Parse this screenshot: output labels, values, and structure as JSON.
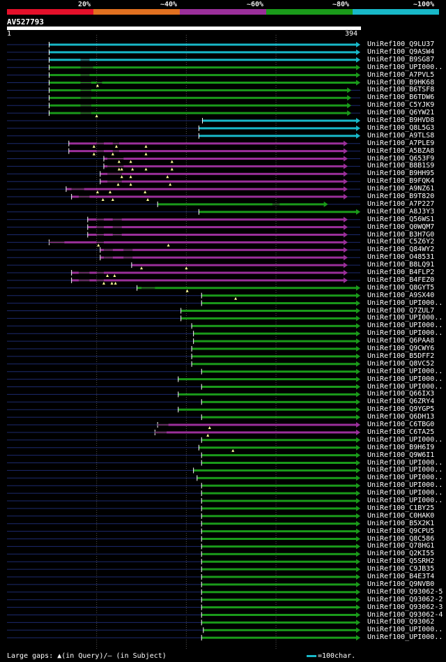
{
  "chart_data": {
    "type": "alignment-overview",
    "query": "AV527793",
    "query_length": 394,
    "axis_start_label": "1",
    "axis_end_label": "394",
    "identity_legend": [
      {
        "label": "20%",
        "color": "#e4102a"
      },
      {
        "label": "~40%",
        "color": "#e07020"
      },
      {
        "label": "~60%",
        "color": "#9a2f9a"
      },
      {
        "label": "~80%",
        "color": "#1a9a1a"
      },
      {
        "label": "~100%",
        "color": "#18b8c8"
      }
    ],
    "footer": {
      "gaps_text": "Large gaps: ▲(in Query)/– (in Subject)",
      "scale_text": "=100char."
    },
    "hits": [
      {
        "id": "UniRef100_Q9LU37",
        "start": 47,
        "end": 394,
        "identity": "~100%",
        "q_gaps": [],
        "s_gaps": []
      },
      {
        "id": "UniRef100_Q9ASW4",
        "start": 47,
        "end": 394,
        "identity": "~100%",
        "q_gaps": [],
        "s_gaps": []
      },
      {
        "id": "UniRef100_B9SG87",
        "start": 47,
        "end": 394,
        "identity": "~100%",
        "q_gaps": [],
        "s_gaps": [
          [
            82,
            92
          ]
        ]
      },
      {
        "id": "UniRef100_UPI000..",
        "start": 47,
        "end": 394,
        "identity": "~80%",
        "q_gaps": [],
        "s_gaps": [
          [
            82,
            96
          ]
        ]
      },
      {
        "id": "UniRef100_A7PVL5",
        "start": 47,
        "end": 394,
        "identity": "~80%",
        "q_gaps": [],
        "s_gaps": [
          [
            82,
            92
          ]
        ]
      },
      {
        "id": "UniRef100_B9HK68",
        "start": 47,
        "end": 394,
        "identity": "~80%",
        "q_gaps": [
          101
        ],
        "s_gaps": [
          [
            82,
            94
          ],
          [
            100,
            106
          ]
        ]
      },
      {
        "id": "UniRef100_B6TSF8",
        "start": 47,
        "end": 384,
        "identity": "~80%",
        "q_gaps": [],
        "s_gaps": [
          [
            82,
            94
          ]
        ]
      },
      {
        "id": "UniRef100_B6TDW6",
        "start": 47,
        "end": 384,
        "identity": "~80%",
        "q_gaps": [],
        "s_gaps": [
          [
            82,
            94
          ]
        ]
      },
      {
        "id": "UniRef100_C5YJK9",
        "start": 47,
        "end": 384,
        "identity": "~80%",
        "q_gaps": [],
        "s_gaps": [
          [
            82,
            94
          ]
        ]
      },
      {
        "id": "UniRef100_Q6YW21",
        "start": 47,
        "end": 384,
        "identity": "~80%",
        "q_gaps": [
          100
        ],
        "s_gaps": [
          [
            82,
            94
          ]
        ]
      },
      {
        "id": "UniRef100_B9HVD8",
        "start": 218,
        "end": 394,
        "identity": "~100%",
        "q_gaps": [],
        "s_gaps": []
      },
      {
        "id": "UniRef100_Q8L5G3",
        "start": 214,
        "end": 394,
        "identity": "~100%",
        "q_gaps": [],
        "s_gaps": []
      },
      {
        "id": "UniRef100_A9TLS8",
        "start": 214,
        "end": 394,
        "identity": "~100%",
        "q_gaps": [],
        "s_gaps": []
      },
      {
        "id": "UniRef100_A7PLE9",
        "start": 69,
        "end": 380,
        "identity": "~60%",
        "q_gaps": [
          97,
          122,
          155
        ],
        "s_gaps": [
          [
            100,
            108
          ],
          [
            118,
            125
          ]
        ]
      },
      {
        "id": "UniRef100_A5BZA8",
        "start": 69,
        "end": 380,
        "identity": "~60%",
        "q_gaps": [
          97,
          118,
          155
        ],
        "s_gaps": [
          [
            100,
            108
          ],
          [
            118,
            125
          ]
        ]
      },
      {
        "id": "UniRef100_Q653F9",
        "start": 108,
        "end": 380,
        "identity": "~60%",
        "q_gaps": [
          125,
          138,
          184
        ],
        "s_gaps": [
          [
            112,
            130
          ]
        ]
      },
      {
        "id": "UniRef100_B8B1S9",
        "start": 108,
        "end": 380,
        "identity": "~60%",
        "q_gaps": [
          125,
          128,
          140,
          155,
          184
        ],
        "s_gaps": [
          [
            112,
            130
          ]
        ]
      },
      {
        "id": "UniRef100_B9HH95",
        "start": 104,
        "end": 380,
        "identity": "~60%",
        "q_gaps": [
          128,
          138,
          179
        ],
        "s_gaps": [
          [
            112,
            128
          ]
        ]
      },
      {
        "id": "UniRef100_B9FQK4",
        "start": 104,
        "end": 380,
        "identity": "~60%",
        "q_gaps": [
          124,
          138,
          182
        ],
        "s_gaps": [
          [
            112,
            128
          ]
        ]
      },
      {
        "id": "UniRef100_A9NZ61",
        "start": 66,
        "end": 380,
        "identity": "~60%",
        "q_gaps": [
          101,
          115,
          154
        ],
        "s_gaps": [
          [
            72,
            86
          ]
        ]
      },
      {
        "id": "UniRef100_B9T820",
        "start": 72,
        "end": 380,
        "identity": "~60%",
        "q_gaps": [
          107,
          118,
          157
        ],
        "s_gaps": [
          [
            80,
            92
          ]
        ]
      },
      {
        "id": "UniRef100_A7P227",
        "start": 168,
        "end": 358,
        "identity": "~80%",
        "q_gaps": [],
        "s_gaps": [
          [
            296,
            304
          ]
        ]
      },
      {
        "id": "UniRef100_A8J3Y3",
        "start": 214,
        "end": 394,
        "identity": "~80%",
        "q_gaps": [],
        "s_gaps": []
      },
      {
        "id": "UniRef100_Q56WS1",
        "start": 90,
        "end": 380,
        "identity": "~60%",
        "q_gaps": [],
        "s_gaps": [
          [
            100,
            108
          ],
          [
            118,
            128
          ]
        ]
      },
      {
        "id": "UniRef100_Q0WQM7",
        "start": 90,
        "end": 380,
        "identity": "~60%",
        "q_gaps": [],
        "s_gaps": [
          [
            100,
            108
          ],
          [
            118,
            128
          ]
        ]
      },
      {
        "id": "UniRef100_B3H7G0",
        "start": 90,
        "end": 380,
        "identity": "~60%",
        "q_gaps": [],
        "s_gaps": [
          [
            100,
            108
          ],
          [
            118,
            128
          ]
        ]
      },
      {
        "id": "UniRef100_C5Z6Y2",
        "start": 47,
        "end": 380,
        "identity": "~60%",
        "q_gaps": [
          102,
          180
        ],
        "s_gaps": [
          [
            47,
            64
          ],
          [
            100,
            108
          ]
        ]
      },
      {
        "id": "UniRef100_Q84WY2",
        "start": 104,
        "end": 380,
        "identity": "~60%",
        "q_gaps": [],
        "s_gaps": [
          [
            108,
            118
          ],
          [
            130,
            140
          ]
        ]
      },
      {
        "id": "UniRef100_O48531",
        "start": 104,
        "end": 380,
        "identity": "~60%",
        "q_gaps": [],
        "s_gaps": [
          [
            108,
            118
          ],
          [
            130,
            140
          ]
        ]
      },
      {
        "id": "UniRef100_B8LQ91",
        "start": 139,
        "end": 380,
        "identity": "~60%",
        "q_gaps": [
          150,
          200
        ],
        "s_gaps": []
      },
      {
        "id": "UniRef100_B4FLP2",
        "start": 72,
        "end": 380,
        "identity": "~60%",
        "q_gaps": [
          112,
          120
        ],
        "s_gaps": [
          [
            80,
            92
          ],
          [
            100,
            108
          ]
        ]
      },
      {
        "id": "UniRef100_B4FEZ0",
        "start": 72,
        "end": 380,
        "identity": "~60%",
        "q_gaps": [
          108,
          117,
          121
        ],
        "s_gaps": [
          [
            80,
            92
          ],
          [
            100,
            108
          ]
        ]
      },
      {
        "id": "UniRef100_Q8GYT5",
        "start": 145,
        "end": 394,
        "identity": "~80%",
        "q_gaps": [
          201
        ],
        "s_gaps": [
          [
            150,
            165
          ]
        ]
      },
      {
        "id": "UniRef100_A9SX40",
        "start": 217,
        "end": 394,
        "identity": "~80%",
        "q_gaps": [
          255
        ],
        "s_gaps": []
      },
      {
        "id": "UniRef100_UPI000..",
        "start": 217,
        "end": 394,
        "identity": "~80%",
        "q_gaps": [],
        "s_gaps": []
      },
      {
        "id": "UniRef100_Q7ZUL7",
        "start": 194,
        "end": 394,
        "identity": "~80%",
        "q_gaps": [],
        "s_gaps": []
      },
      {
        "id": "UniRef100_UPI000..",
        "start": 194,
        "end": 394,
        "identity": "~80%",
        "q_gaps": [],
        "s_gaps": []
      },
      {
        "id": "UniRef100_UPI000..",
        "start": 206,
        "end": 394,
        "identity": "~80%",
        "q_gaps": [],
        "s_gaps": []
      },
      {
        "id": "UniRef100_UPI000..",
        "start": 208,
        "end": 394,
        "identity": "~80%",
        "q_gaps": [],
        "s_gaps": []
      },
      {
        "id": "UniRef100_Q6PAA8",
        "start": 208,
        "end": 394,
        "identity": "~80%",
        "q_gaps": [],
        "s_gaps": []
      },
      {
        "id": "UniRef100_Q9CWY6",
        "start": 206,
        "end": 394,
        "identity": "~80%",
        "q_gaps": [],
        "s_gaps": []
      },
      {
        "id": "UniRef100_B5DFF2",
        "start": 206,
        "end": 394,
        "identity": "~80%",
        "q_gaps": [],
        "s_gaps": []
      },
      {
        "id": "UniRef100_Q8VC52",
        "start": 206,
        "end": 394,
        "identity": "~80%",
        "q_gaps": [],
        "s_gaps": []
      },
      {
        "id": "UniRef100_UPI000..",
        "start": 217,
        "end": 394,
        "identity": "~80%",
        "q_gaps": [],
        "s_gaps": []
      },
      {
        "id": "UniRef100_UPI000..",
        "start": 191,
        "end": 394,
        "identity": "~80%",
        "q_gaps": [],
        "s_gaps": []
      },
      {
        "id": "UniRef100_UPI000..",
        "start": 217,
        "end": 394,
        "identity": "~80%",
        "q_gaps": [],
        "s_gaps": []
      },
      {
        "id": "UniRef100_Q66IX3",
        "start": 191,
        "end": 394,
        "identity": "~80%",
        "q_gaps": [],
        "s_gaps": []
      },
      {
        "id": "UniRef100_Q6ZRY4",
        "start": 217,
        "end": 394,
        "identity": "~80%",
        "q_gaps": [],
        "s_gaps": []
      },
      {
        "id": "UniRef100_Q9YGP5",
        "start": 191,
        "end": 394,
        "identity": "~80%",
        "q_gaps": [],
        "s_gaps": []
      },
      {
        "id": "UniRef100_Q6DH13",
        "start": 217,
        "end": 394,
        "identity": "~80%",
        "q_gaps": [],
        "s_gaps": []
      },
      {
        "id": "UniRef100_C6TBG0",
        "start": 168,
        "end": 394,
        "identity": "~60%",
        "q_gaps": [
          226
        ],
        "s_gaps": [
          [
            168,
            180
          ]
        ]
      },
      {
        "id": "UniRef100_C6TA25",
        "start": 165,
        "end": 394,
        "identity": "~60%",
        "q_gaps": [
          224
        ],
        "s_gaps": [
          [
            165,
            178
          ]
        ]
      },
      {
        "id": "UniRef100_UPI000..",
        "start": 217,
        "end": 394,
        "identity": "~80%",
        "q_gaps": [],
        "s_gaps": []
      },
      {
        "id": "UniRef100_B9H6I9",
        "start": 214,
        "end": 394,
        "identity": "~80%",
        "q_gaps": [
          252
        ],
        "s_gaps": []
      },
      {
        "id": "UniRef100_Q9W6I1",
        "start": 217,
        "end": 394,
        "identity": "~80%",
        "q_gaps": [],
        "s_gaps": []
      },
      {
        "id": "UniRef100_UPI000..",
        "start": 217,
        "end": 394,
        "identity": "~80%",
        "q_gaps": [],
        "s_gaps": []
      },
      {
        "id": "UniRef100_UPI000..",
        "start": 208,
        "end": 394,
        "identity": "~80%",
        "q_gaps": [],
        "s_gaps": []
      },
      {
        "id": "UniRef100_UPI000..",
        "start": 212,
        "end": 394,
        "identity": "~80%",
        "q_gaps": [],
        "s_gaps": []
      },
      {
        "id": "UniRef100_UPI000..",
        "start": 217,
        "end": 394,
        "identity": "~80%",
        "q_gaps": [],
        "s_gaps": []
      },
      {
        "id": "UniRef100_UPI000..",
        "start": 217,
        "end": 394,
        "identity": "~80%",
        "q_gaps": [],
        "s_gaps": []
      },
      {
        "id": "UniRef100_UPI000..",
        "start": 217,
        "end": 394,
        "identity": "~80%",
        "q_gaps": [],
        "s_gaps": []
      },
      {
        "id": "UniRef100_C1BY25",
        "start": 217,
        "end": 394,
        "identity": "~80%",
        "q_gaps": [],
        "s_gaps": []
      },
      {
        "id": "UniRef100_C0HAK0",
        "start": 217,
        "end": 394,
        "identity": "~80%",
        "q_gaps": [],
        "s_gaps": []
      },
      {
        "id": "UniRef100_B5X2K1",
        "start": 217,
        "end": 394,
        "identity": "~80%",
        "q_gaps": [],
        "s_gaps": []
      },
      {
        "id": "UniRef100_Q9CPU5",
        "start": 217,
        "end": 394,
        "identity": "~80%",
        "q_gaps": [],
        "s_gaps": []
      },
      {
        "id": "UniRef100_Q8C586",
        "start": 217,
        "end": 394,
        "identity": "~80%",
        "q_gaps": [],
        "s_gaps": []
      },
      {
        "id": "UniRef100_Q78HG1",
        "start": 217,
        "end": 394,
        "identity": "~80%",
        "q_gaps": [],
        "s_gaps": []
      },
      {
        "id": "UniRef100_Q2KI55",
        "start": 217,
        "end": 394,
        "identity": "~80%",
        "q_gaps": [],
        "s_gaps": []
      },
      {
        "id": "UniRef100_Q5SRH2",
        "start": 217,
        "end": 394,
        "identity": "~80%",
        "q_gaps": [],
        "s_gaps": []
      },
      {
        "id": "UniRef100_C9JB35",
        "start": 217,
        "end": 394,
        "identity": "~80%",
        "q_gaps": [],
        "s_gaps": []
      },
      {
        "id": "UniRef100_B4E3T4",
        "start": 217,
        "end": 394,
        "identity": "~80%",
        "q_gaps": [],
        "s_gaps": []
      },
      {
        "id": "UniRef100_Q9NVB0",
        "start": 217,
        "end": 394,
        "identity": "~80%",
        "q_gaps": [],
        "s_gaps": []
      },
      {
        "id": "UniRef100_Q93062-5",
        "start": 217,
        "end": 394,
        "identity": "~80%",
        "q_gaps": [],
        "s_gaps": []
      },
      {
        "id": "UniRef100_Q93062-2",
        "start": 217,
        "end": 394,
        "identity": "~80%",
        "q_gaps": [],
        "s_gaps": []
      },
      {
        "id": "UniRef100_Q93062-3",
        "start": 217,
        "end": 394,
        "identity": "~80%",
        "q_gaps": [],
        "s_gaps": []
      },
      {
        "id": "UniRef100_Q93062-4",
        "start": 217,
        "end": 394,
        "identity": "~80%",
        "q_gaps": [],
        "s_gaps": []
      },
      {
        "id": "UniRef100_Q93062",
        "start": 217,
        "end": 394,
        "identity": "~80%",
        "q_gaps": [],
        "s_gaps": []
      },
      {
        "id": "UniRef100_UPI000..",
        "start": 219,
        "end": 394,
        "identity": "~80%",
        "q_gaps": [],
        "s_gaps": []
      },
      {
        "id": "UniRef100_UPI000..",
        "start": 217,
        "end": 394,
        "identity": "~80%",
        "q_gaps": [],
        "s_gaps": []
      }
    ]
  }
}
